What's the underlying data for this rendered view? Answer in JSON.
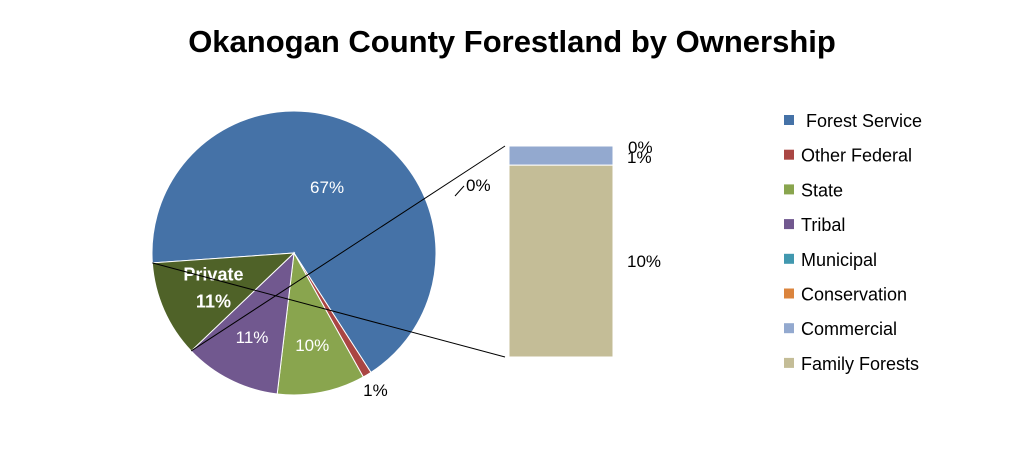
{
  "chart_data": {
    "type": "pie",
    "variant": "bar-of-pie",
    "title": "Okanogan County Forestland by Ownership",
    "pie": {
      "slices": [
        {
          "name": "Forest Service",
          "value": 67,
          "label": "67%",
          "color": "#4572A7"
        },
        {
          "name": "Other Federal",
          "value": 1,
          "label": "1%",
          "color": "#AA4643"
        },
        {
          "name": "State",
          "value": 10,
          "label": "10%",
          "color": "#89A54E"
        },
        {
          "name": "Tribal",
          "value": 11,
          "label": "11%",
          "color": "#71588F"
        },
        {
          "name": "Private",
          "value": 11,
          "label": "11%",
          "color": "#4F6228"
        }
      ],
      "private_label": "Private",
      "private_value_label": "11%"
    },
    "bar": {
      "segments": [
        {
          "name": "Municipal",
          "value": 0,
          "label": "0%",
          "color": "#4198AF"
        },
        {
          "name": "Conservation",
          "value": 0,
          "label": "0%",
          "color": "#DB843D"
        },
        {
          "name": "Commercial",
          "value": 1,
          "label": "1%",
          "color": "#93A9CF"
        },
        {
          "name": "Family Forests",
          "value": 10,
          "label": "10%",
          "color": "#C4BD97"
        }
      ]
    },
    "legend": {
      "position": "right",
      "items": [
        {
          "name": "Forest Service",
          "color": "#4572A7"
        },
        {
          "name": "Other Federal",
          "color": "#AA4643"
        },
        {
          "name": "State",
          "color": "#89A54E"
        },
        {
          "name": "Tribal",
          "color": "#71588F"
        },
        {
          "name": "Municipal",
          "color": "#4198AF"
        },
        {
          "name": "Conservation",
          "color": "#DB843D"
        },
        {
          "name": "Commercial",
          "color": "#93A9CF"
        },
        {
          "name": "Family Forests",
          "color": "#C4BD97"
        }
      ]
    }
  }
}
